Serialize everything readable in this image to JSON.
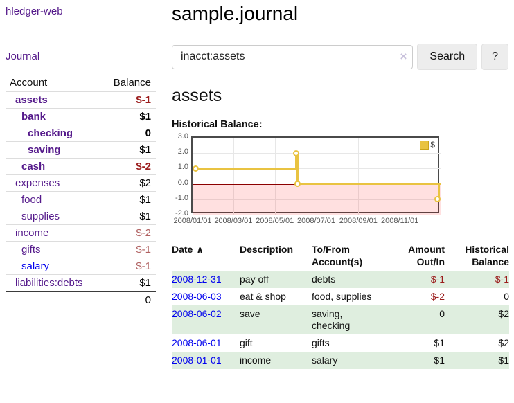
{
  "app": {
    "brand": "hledger-web",
    "nav_journal": "Journal"
  },
  "sidebar": {
    "header": {
      "account": "Account",
      "balance": "Balance"
    },
    "accounts": [
      {
        "name": "assets",
        "balance": "$-1",
        "depth": 0,
        "bold": true,
        "balance_class": "neg-strong"
      },
      {
        "name": "bank",
        "balance": "$1",
        "depth": 1,
        "bold": true,
        "balance_class": ""
      },
      {
        "name": "checking",
        "balance": "0",
        "depth": 2,
        "bold": true,
        "balance_class": ""
      },
      {
        "name": "saving",
        "balance": "$1",
        "depth": 2,
        "bold": true,
        "balance_class": ""
      },
      {
        "name": "cash",
        "balance": "$-2",
        "depth": 1,
        "bold": true,
        "balance_class": "neg-strong"
      },
      {
        "name": "expenses",
        "balance": "$2",
        "depth": 0,
        "bold": false,
        "balance_class": ""
      },
      {
        "name": "food",
        "balance": "$1",
        "depth": 1,
        "bold": false,
        "balance_class": ""
      },
      {
        "name": "supplies",
        "balance": "$1",
        "depth": 1,
        "bold": false,
        "balance_class": ""
      },
      {
        "name": "income",
        "balance": "$-2",
        "depth": 0,
        "bold": false,
        "balance_class": "neg-muted"
      },
      {
        "name": "gifts",
        "balance": "$-1",
        "depth": 1,
        "bold": false,
        "balance_class": "neg-muted"
      },
      {
        "name": "salary",
        "balance": "$-1",
        "depth": 1,
        "bold": false,
        "balance_class": "neg-muted",
        "link_color": "blue"
      },
      {
        "name": "liabilities:debts",
        "balance": "$1",
        "depth": 0,
        "bold": false,
        "balance_class": ""
      }
    ],
    "total": "0"
  },
  "header": {
    "title": "sample.journal"
  },
  "search": {
    "value": "inacct:assets",
    "clear_icon": "×",
    "button_label": "Search",
    "help_label": "?"
  },
  "account_page": {
    "title": "assets",
    "chart_label": "Historical Balance:"
  },
  "chart_data": {
    "type": "line",
    "step": true,
    "title": "Historical Balance",
    "series": [
      {
        "name": "$",
        "x": [
          "2008-01-01",
          "2008-06-01",
          "2008-06-03",
          "2008-12-31"
        ],
        "y": [
          1,
          2,
          0,
          -1
        ]
      }
    ],
    "xlim": [
      "2008-01-01",
      "2008-12-31"
    ],
    "ylim": [
      -2,
      3
    ],
    "yticks": [
      "3.0",
      "2.0",
      "1.0",
      "0.0",
      "-1.0",
      "-2.0"
    ],
    "xticks": [
      "2008/01/01",
      "2008/03/01",
      "2008/05/01",
      "2008/07/01",
      "2008/09/01",
      "2008/11/01"
    ],
    "legend_position": "top-right",
    "grid": true,
    "negative_region_shaded": true,
    "colors": {
      "series": "#e9c341",
      "legend_border": "#caa41c",
      "negative_fill": "rgba(255,0,0,0.12)",
      "zero_line": "#8b0000"
    }
  },
  "register": {
    "columns": [
      "Date",
      "Description",
      "To/From Account(s)",
      "Amount Out/In",
      "Historical Balance"
    ],
    "sort_indicator": "∧",
    "rows": [
      {
        "date": "2008-12-31",
        "description": "pay off",
        "accounts": "debts",
        "amount": "$-1",
        "balance": "$-1"
      },
      {
        "date": "2008-06-03",
        "description": "eat & shop",
        "accounts": "food, supplies",
        "amount": "$-2",
        "balance": "0"
      },
      {
        "date": "2008-06-02",
        "description": "save",
        "accounts": "saving, checking",
        "amount": "0",
        "balance": "$2"
      },
      {
        "date": "2008-06-01",
        "description": "gift",
        "accounts": "gifts",
        "amount": "$1",
        "balance": "$2"
      },
      {
        "date": "2008-01-01",
        "description": "income",
        "accounts": "salary",
        "amount": "$1",
        "balance": "$1"
      }
    ]
  },
  "colors": {
    "link_purple": "#551a8b",
    "link_blue": "#0000ee",
    "negative_strong": "#9b1c1c",
    "negative_muted": "#b06060",
    "row_stripe_green": "#dfeedf"
  }
}
